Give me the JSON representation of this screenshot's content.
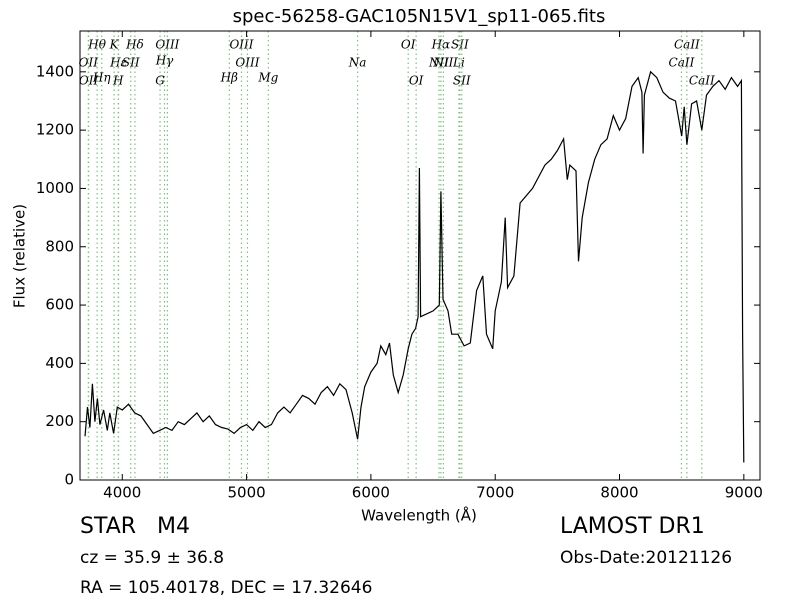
{
  "chart_data": {
    "type": "line",
    "title": "spec-56258-GAC105N15V1_sp11-065.fits",
    "x_label": "Wavelength (Å)",
    "y_label": "Flux (relative)",
    "xlim": [
      3660,
      9130
    ],
    "ylim": [
      0,
      1540
    ],
    "xticks": [
      4000,
      5000,
      6000,
      7000,
      8000,
      9000
    ],
    "yticks": [
      0,
      200,
      400,
      600,
      800,
      1000,
      1200,
      1400
    ],
    "line_color": "#7fbf7f",
    "lines": [
      {
        "label": "Hθ",
        "x": 3798
      },
      {
        "label": "K",
        "x": 3934
      },
      {
        "label": "Hδ",
        "x": 4102
      },
      {
        "label": "OIII",
        "x": 4363
      },
      {
        "label": "OIII",
        "x": 4959
      },
      {
        "label": "OI",
        "x": 6300
      },
      {
        "label": "Hα",
        "x": 6563
      },
      {
        "label": "SII",
        "x": 6716
      },
      {
        "label": "CaII",
        "x": 8542
      },
      {
        "label": "OII",
        "x": 3727
      },
      {
        "label": "Hε",
        "x": 3970
      },
      {
        "label": "SII",
        "x": 4068
      },
      {
        "label": "Hγ",
        "x": 4340
      },
      {
        "label": "OIII",
        "x": 5007
      },
      {
        "label": "Na",
        "x": 5893
      },
      {
        "label": "NII",
        "x": 6583
      },
      {
        "label": "Li",
        "x": 6708
      },
      {
        "label": "CaII",
        "x": 8498
      },
      {
        "label": "OII",
        "x": 3729
      },
      {
        "label": "Hη",
        "x": 3835
      },
      {
        "label": "H",
        "x": 3968
      },
      {
        "label": "G",
        "x": 4304
      },
      {
        "label": "Hβ",
        "x": 4861
      },
      {
        "label": "Mg",
        "x": 5175
      },
      {
        "label": "OI",
        "x": 6364
      },
      {
        "label": "NII",
        "x": 6548
      },
      {
        "label": "SII",
        "x": 6731
      },
      {
        "label": "CaII",
        "x": 8662
      }
    ],
    "series": [
      {
        "name": "flux",
        "color": "#000000",
        "x": [
          3700,
          3720,
          3740,
          3760,
          3780,
          3800,
          3820,
          3850,
          3880,
          3900,
          3930,
          3960,
          4000,
          4050,
          4100,
          4150,
          4200,
          4250,
          4300,
          4350,
          4400,
          4450,
          4500,
          4550,
          4600,
          4650,
          4700,
          4750,
          4800,
          4850,
          4900,
          4950,
          5000,
          5050,
          5100,
          5150,
          5200,
          5250,
          5300,
          5350,
          5400,
          5450,
          5500,
          5550,
          5600,
          5650,
          5700,
          5750,
          5800,
          5850,
          5893,
          5920,
          5950,
          6000,
          6050,
          6080,
          6120,
          6150,
          6180,
          6220,
          6260,
          6300,
          6330,
          6360,
          6380,
          6390,
          6400,
          6450,
          6500,
          6550,
          6563,
          6580,
          6620,
          6650,
          6700,
          6750,
          6800,
          6850,
          6900,
          6930,
          6950,
          6980,
          7000,
          7050,
          7080,
          7100,
          7150,
          7200,
          7300,
          7400,
          7450,
          7500,
          7550,
          7580,
          7600,
          7650,
          7670,
          7700,
          7750,
          7800,
          7850,
          7900,
          7950,
          8000,
          8050,
          8100,
          8150,
          8180,
          8190,
          8200,
          8250,
          8300,
          8350,
          8400,
          8450,
          8500,
          8520,
          8542,
          8580,
          8620,
          8662,
          8700,
          8750,
          8800,
          8850,
          8900,
          8950,
          8980,
          8990,
          9000
        ],
        "values": [
          150,
          250,
          180,
          330,
          200,
          280,
          190,
          240,
          170,
          230,
          160,
          250,
          240,
          260,
          230,
          220,
          190,
          160,
          170,
          180,
          170,
          200,
          190,
          210,
          230,
          200,
          220,
          190,
          180,
          175,
          160,
          180,
          190,
          170,
          200,
          180,
          190,
          230,
          250,
          230,
          260,
          290,
          280,
          260,
          300,
          320,
          290,
          330,
          310,
          230,
          140,
          250,
          320,
          370,
          400,
          460,
          430,
          470,
          360,
          300,
          360,
          450,
          500,
          520,
          560,
          1070,
          560,
          570,
          580,
          600,
          990,
          620,
          580,
          500,
          500,
          460,
          470,
          650,
          700,
          500,
          480,
          450,
          580,
          680,
          900,
          660,
          700,
          950,
          1000,
          1080,
          1100,
          1130,
          1170,
          1030,
          1080,
          1060,
          750,
          900,
          1020,
          1100,
          1150,
          1170,
          1250,
          1200,
          1240,
          1350,
          1380,
          1330,
          1120,
          1320,
          1400,
          1380,
          1330,
          1310,
          1300,
          1180,
          1280,
          1150,
          1290,
          1300,
          1200,
          1320,
          1350,
          1370,
          1340,
          1380,
          1350,
          1370,
          500,
          60
        ]
      }
    ]
  },
  "footer": {
    "object": "STAR   M4",
    "redshift": "cz = 35.9  ± 36.8",
    "coords": "RA = 105.40178, DEC = 17.32646",
    "release": "LAMOST DR1",
    "obs_date": "Obs-Date:20121126"
  }
}
